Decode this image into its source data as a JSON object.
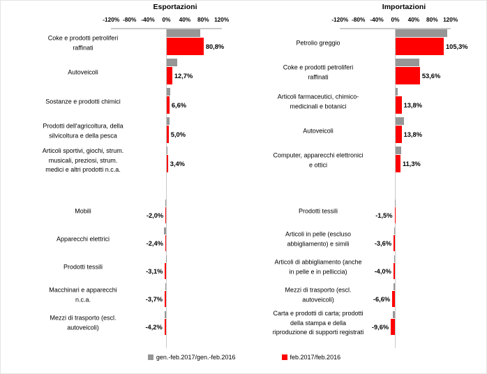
{
  "colors": {
    "red": "#FF0000",
    "gray": "#969696",
    "axis_line": "#C9C9C9",
    "text": "#000000"
  },
  "legend": {
    "items": [
      {
        "label": "gen.-feb.2017/gen.-feb.2016",
        "color": "#969696"
      },
      {
        "label": "feb.2017/feb.2016",
        "color": "#FF0000"
      }
    ]
  },
  "chart_data": [
    {
      "type": "bar",
      "orientation": "horizontal",
      "title": "Esportazioni",
      "xlabel": "",
      "ylabel": "",
      "xlim": [
        -120,
        120
      ],
      "grid": false,
      "legend_position": "bottom",
      "axis": {
        "min": -120,
        "max": 120,
        "step": 40,
        "tick_labels": [
          "-120%",
          "-80%",
          "-40%",
          "0%",
          "40%",
          "80%",
          "120%"
        ]
      },
      "series_names": [
        "gen.-feb.2017/gen.-feb.2016",
        "feb.2017/feb.2016"
      ],
      "rows": [
        {
          "label": "Coke e prodotti petroliferi\nraffinati",
          "gen_feb": 73,
          "feb": 80.8,
          "feb_label": "80,8%"
        },
        {
          "label": "Autoveicoli",
          "gen_feb": 23,
          "feb": 12.7,
          "feb_label": "12,7%"
        },
        {
          "label": "Sostanze e prodotti chimici",
          "gen_feb": 9,
          "feb": 6.6,
          "feb_label": "6,6%"
        },
        {
          "label": "Prodotti dell'agricoltura, della\nsilvicoltura e della pesca",
          "gen_feb": 7.5,
          "feb": 5.0,
          "feb_label": "5,0%"
        },
        {
          "label": "Articoli sportivi, giochi, strum.\nmusicali, preziosi, strum.\nmedici e altri prodotti n.c.a.",
          "gen_feb": 2,
          "feb": 3.4,
          "feb_label": "3,4%"
        },
        {
          "label": "Mobili",
          "gen_feb": -2.5,
          "feb": -2.0,
          "feb_label": "-2,0%"
        },
        {
          "label": "Apparecchi elettrici",
          "gen_feb": -5.5,
          "feb": -2.4,
          "feb_label": "-2,4%"
        },
        {
          "label": "Prodotti tessili",
          "gen_feb": -1.2,
          "feb": -3.1,
          "feb_label": "-3,1%"
        },
        {
          "label": "Macchinari e apparecchi\nn.c.a.",
          "gen_feb": -3.0,
          "feb": -3.7,
          "feb_label": "-3,7%"
        },
        {
          "label": "Mezzi di trasporto (escl.\nautoveicoli)",
          "gen_feb": -3.4,
          "feb": -4.2,
          "feb_label": "-4,2%"
        }
      ]
    },
    {
      "type": "bar",
      "orientation": "horizontal",
      "title": "Importazioni",
      "xlabel": "",
      "ylabel": "",
      "xlim": [
        -120,
        120
      ],
      "grid": false,
      "legend_position": "bottom",
      "axis": {
        "min": -120,
        "max": 120,
        "step": 40,
        "tick_labels": [
          "-120%",
          "-80%",
          "-40%",
          "0%",
          "40%",
          "80%",
          "120%"
        ]
      },
      "series_names": [
        "gen.-feb.2017/gen.-feb.2016",
        "feb.2017/feb.2016"
      ],
      "rows": [
        {
          "label": "Petrolio greggio",
          "gen_feb": 113,
          "feb": 105.3,
          "feb_label": "105,3%"
        },
        {
          "label": "Coke e prodotti petroliferi\nraffinati",
          "gen_feb": 53,
          "feb": 53.6,
          "feb_label": "53,6%"
        },
        {
          "label": "Articoli farmaceutici, chimico-\nmedicinali e botanici",
          "gen_feb": 6,
          "feb": 13.8,
          "feb_label": "13,8%"
        },
        {
          "label": "Autoveicoli",
          "gen_feb": 18.5,
          "feb": 13.8,
          "feb_label": "13,8%"
        },
        {
          "label": "Computer, apparecchi elettronici\ne ottici",
          "gen_feb": 13.5,
          "feb": 11.3,
          "feb_label": "11,3%"
        },
        {
          "label": "Prodotti tessili",
          "gen_feb": -1.2,
          "feb": -1.5,
          "feb_label": "-1,5%"
        },
        {
          "label": "Articoli in pelle (escluso\nabbigliamento) e simili",
          "gen_feb": -1.8,
          "feb": -3.6,
          "feb_label": "-3,6%"
        },
        {
          "label": "Articoli di abbigliamento (anche\nin pelle e in pelliccia)",
          "gen_feb": -2.6,
          "feb": -4.0,
          "feb_label": "-4,0%"
        },
        {
          "label": "Mezzi di trasporto (escl.\nautoveicoli)",
          "gen_feb": -3.6,
          "feb": -6.6,
          "feb_label": "-6,6%"
        },
        {
          "label": "Carta e prodotti di carta; prodotti\ndella stampa e della\nriproduzione di supporti registrati",
          "gen_feb": -4.6,
          "feb": -9.6,
          "feb_label": "-9,6%"
        }
      ]
    }
  ]
}
